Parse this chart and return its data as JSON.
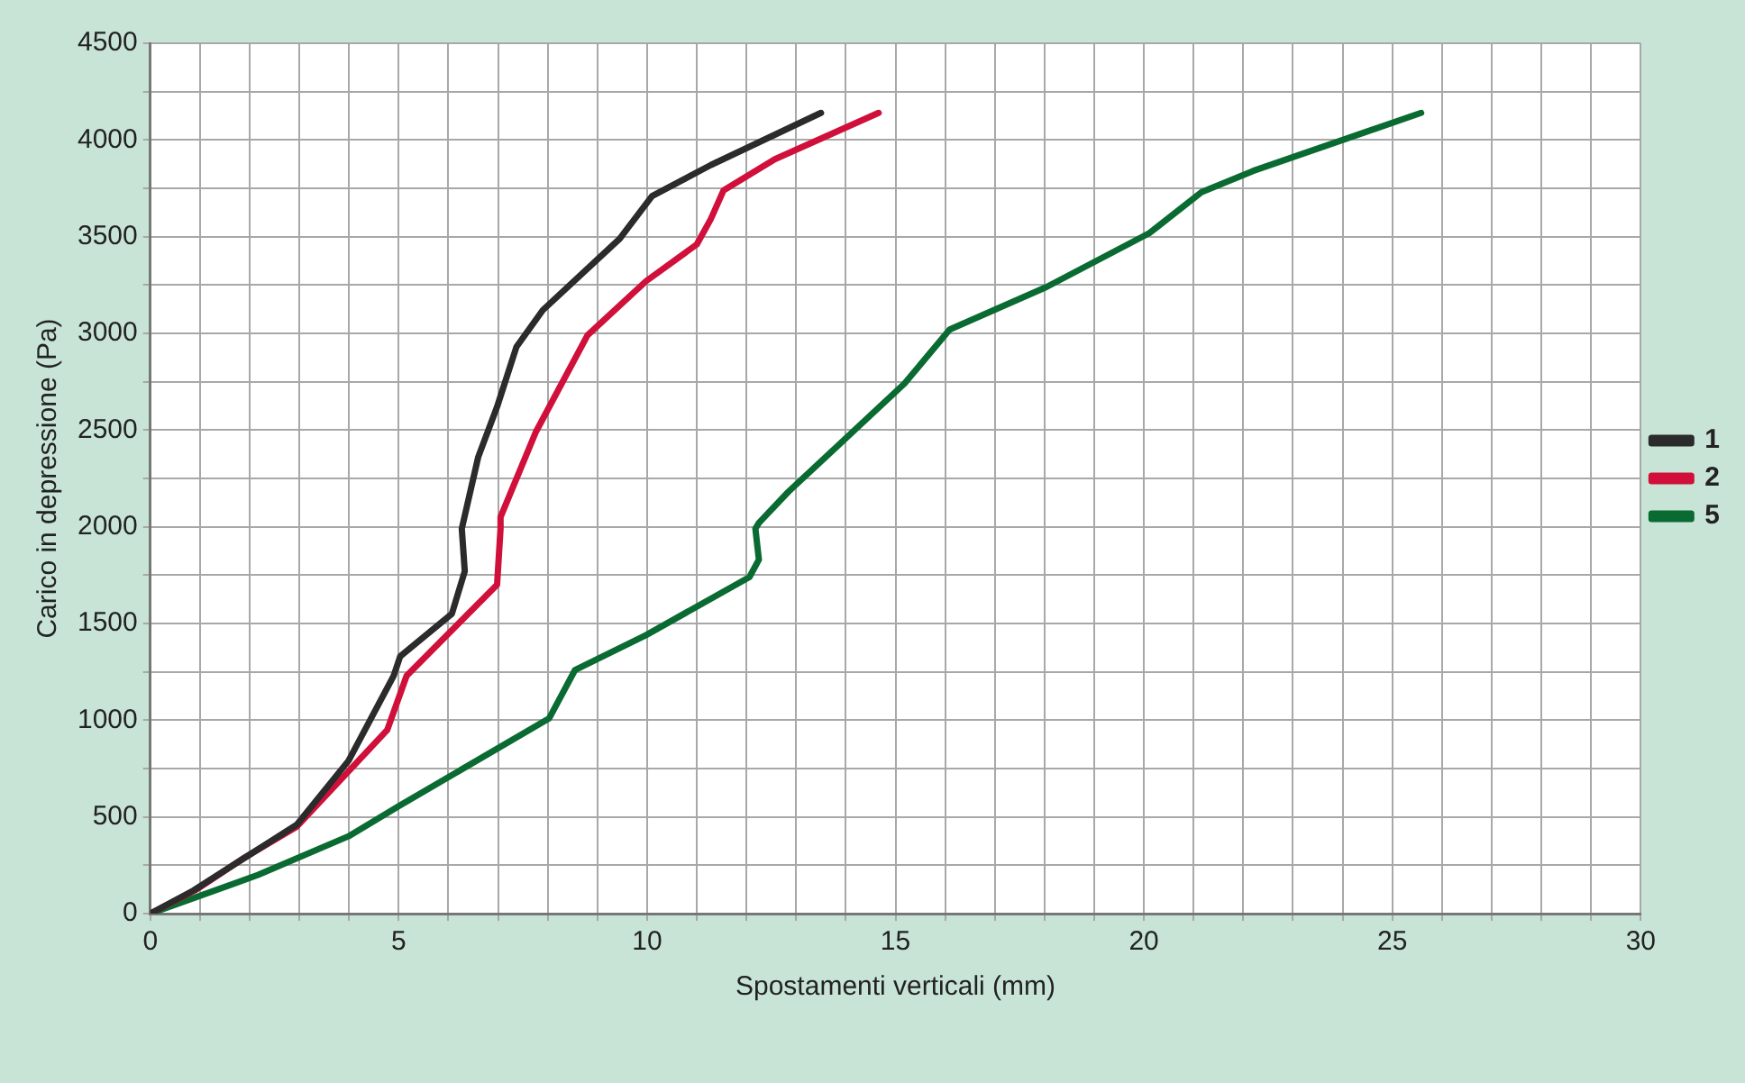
{
  "chart_data": {
    "type": "line",
    "xlabel": "Spostamenti verticali (mm)",
    "ylabel": "Carico in depressione (Pa)",
    "xlim": [
      0,
      30
    ],
    "ylim": [
      0,
      4500
    ],
    "xticks": [
      0,
      {
        "value": 1,
        "label": null
      },
      {
        "value": 2,
        "label": null
      },
      {
        "value": 3,
        "label": null
      },
      {
        "value": 4,
        "label": null
      },
      5,
      {
        "value": 6,
        "label": null
      },
      {
        "value": 7,
        "label": null
      },
      {
        "value": 8,
        "label": null
      },
      {
        "value": 9,
        "label": null
      },
      10,
      {
        "value": 11,
        "label": null
      },
      {
        "value": 12,
        "label": null
      },
      {
        "value": 13,
        "label": null
      },
      {
        "value": 14,
        "label": null
      },
      15,
      {
        "value": 16,
        "label": null
      },
      {
        "value": 17,
        "label": null
      },
      {
        "value": 18,
        "label": null
      },
      {
        "value": 19,
        "label": null
      },
      20,
      {
        "value": 21,
        "label": null
      },
      {
        "value": 22,
        "label": null
      },
      {
        "value": 23,
        "label": null
      },
      {
        "value": 24,
        "label": null
      },
      25,
      {
        "value": 26,
        "label": null
      },
      {
        "value": 27,
        "label": null
      },
      {
        "value": 28,
        "label": null
      },
      {
        "value": 29,
        "label": null
      },
      30
    ],
    "yticks": [
      0,
      {
        "value": 250,
        "label": null
      },
      500,
      {
        "value": 750,
        "label": null
      },
      1000,
      {
        "value": 1250,
        "label": null
      },
      1500,
      {
        "value": 1750,
        "label": null
      },
      2000,
      {
        "value": 2250,
        "label": null
      },
      2500,
      {
        "value": 2750,
        "label": null
      },
      3000,
      {
        "value": 3250,
        "label": null
      },
      3500,
      {
        "value": 3750,
        "label": null
      },
      4000,
      {
        "value": 4250,
        "label": null
      },
      4500
    ],
    "grid": true,
    "legend": "right",
    "marker": "none",
    "line_style": "solid",
    "series": [
      {
        "name": "1",
        "color": "#2b2b2b",
        "x": [
          0,
          0.87,
          1.91,
          2.95,
          3.99,
          4.9,
          5.03,
          6.07,
          6.33,
          6.27,
          6.6,
          6.98,
          7.37,
          7.9,
          9.45,
          10.1,
          11.28,
          13.5
        ],
        "values": [
          0,
          120,
          290,
          460,
          790,
          1230,
          1330,
          1550,
          1770,
          1990,
          2360,
          2620,
          2930,
          3120,
          3490,
          3710,
          3870,
          4140
        ]
      },
      {
        "name": "2",
        "color": "#d0103a",
        "x": [
          0,
          0.9,
          1.9,
          2.95,
          4.77,
          5.16,
          6.98,
          7.05,
          7.05,
          7.76,
          8.8,
          9.98,
          11.0,
          11.28,
          11.54,
          12.57,
          14.66
        ],
        "values": [
          0,
          120,
          290,
          450,
          950,
          1230,
          1700,
          1990,
          2050,
          2490,
          2990,
          3270,
          3460,
          3590,
          3740,
          3900,
          4140
        ]
      },
      {
        "name": "5",
        "color": "#0a6b32",
        "x": [
          0,
          2.17,
          3.99,
          5.03,
          8.03,
          8.55,
          9.98,
          12.06,
          12.25,
          12.18,
          12.25,
          12.84,
          15.18,
          16.09,
          18.04,
          20.12,
          21.16,
          22.2,
          25.58
        ],
        "values": [
          0,
          200,
          400,
          560,
          1010,
          1260,
          1440,
          1740,
          1830,
          1990,
          2020,
          2180,
          2740,
          3020,
          3240,
          3520,
          3730,
          3840,
          4140
        ]
      }
    ]
  }
}
